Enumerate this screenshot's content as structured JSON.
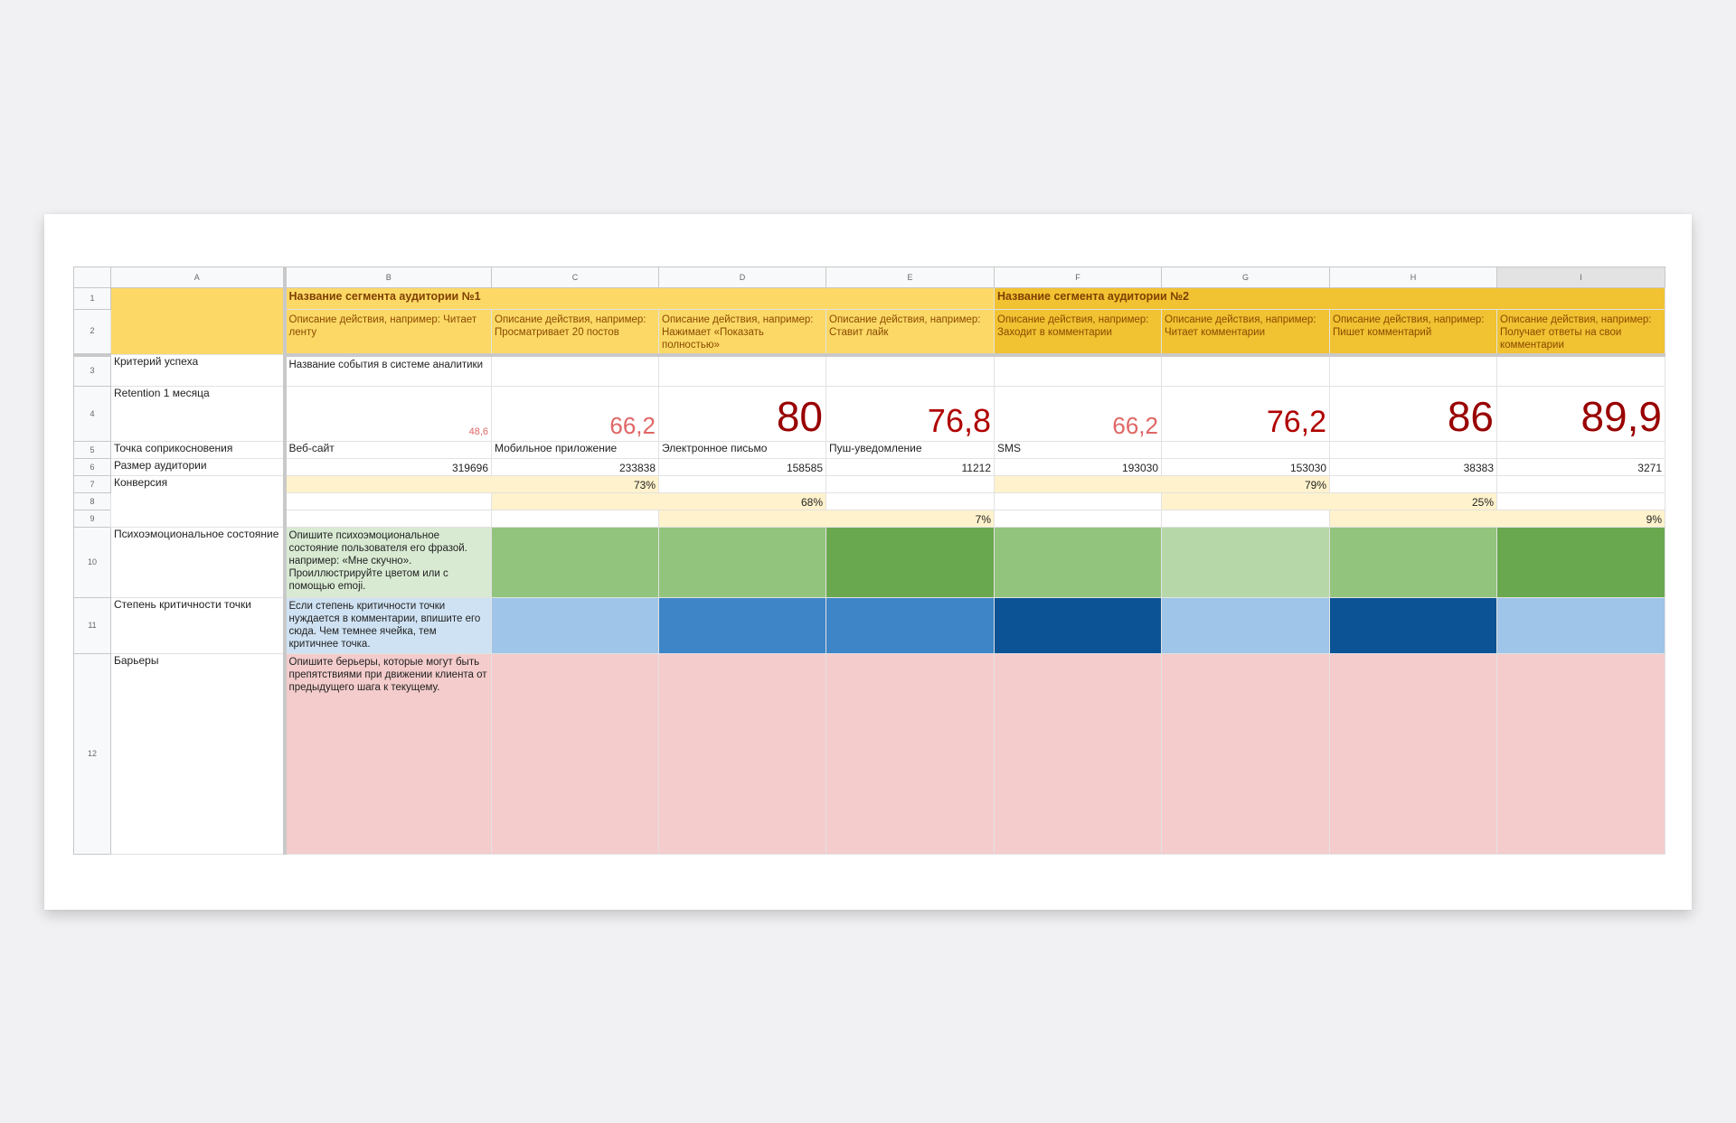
{
  "columns": [
    "A",
    "B",
    "C",
    "D",
    "E",
    "F",
    "G",
    "H",
    "I"
  ],
  "rows": [
    "1",
    "2",
    "3",
    "4",
    "5",
    "6",
    "7",
    "8",
    "9",
    "10",
    "11",
    "12"
  ],
  "segments": [
    {
      "title": "Название сегмента аудитории №1"
    },
    {
      "title": "Название сегмента аудитории №2"
    }
  ],
  "actions": [
    "Описание действия, например: Читает ленту",
    "Описание действия, например: Просматривает 20 постов",
    "Описание действия, например: Нажимает «Показать полностью»",
    "Описание действия, например: Ставит лайк",
    "Описание действия, например: Заходит в комментарии",
    "Описание действия, например: Читает комментарии",
    "Описание действия, например: Пишет комментарий",
    "Описание действия, например: Получает ответы на свои комментарии"
  ],
  "labels": {
    "success": "Критерий успеха",
    "retention": "Retention 1 месяца",
    "touchpoint": "Точка соприкосновения",
    "audience": "Размер аудитории",
    "conversion": "Конверсия",
    "emotion": "Психоэмоциональное состояние",
    "criticality": "Степень критичности точки",
    "barriers": "Барьеры"
  },
  "success_event": "Название события в системе аналитики",
  "retention": [
    "48,6",
    "66,2",
    "80",
    "76,8",
    "66,2",
    "76,2",
    "86",
    "89,9"
  ],
  "touchpoints": [
    "Веб-сайт",
    "Мобильное приложение",
    "Электронное письмо",
    "Пуш-уведомление",
    "SMS",
    "",
    "",
    ""
  ],
  "audience": [
    "319696",
    "233838",
    "158585",
    "11212",
    "193030",
    "153030",
    "38383",
    "3271"
  ],
  "conversion": {
    "r7a": "73%",
    "r7b": "79%",
    "r8a": "68%",
    "r8b": "25%",
    "r9a": "7%",
    "r9b": "9%"
  },
  "hints": {
    "emotion": "Опишите психоэмоциональное состояние пользователя его фразой. например: «Мне скучно». Проиллюстрируйте цветом или с помощью emoji.",
    "criticality": "Если степень критичности точки нуждается в комментарии, впишите его сюда. Чем темнее ячейка, тем критичнее точка.",
    "barriers": "Опишите берьеры, которые могут быть препятствиями при движении клиента от предыдущего шага к текущему."
  },
  "emotion_colors": [
    "#93c47d",
    "#93c47d",
    "#6aa84f",
    "#93c47d",
    "#b6d7a8",
    "#93c47d",
    "#6aa84f"
  ],
  "criticality_colors": [
    "#9fc5e8",
    "#3d85c6",
    "#3d85c6",
    "#0b5394",
    "#9fc5e8",
    "#0b5394",
    "#9fc5e8"
  ],
  "fills": {
    "header_segment1": "#fcd966",
    "header_segment2": "#f1c232",
    "retention_text": "#990000",
    "conversion_band": "#fff2cc",
    "emotion_hint": "#d9ead3",
    "criticality_hint": "#cfe2f3",
    "barriers": "#f4cccc"
  }
}
